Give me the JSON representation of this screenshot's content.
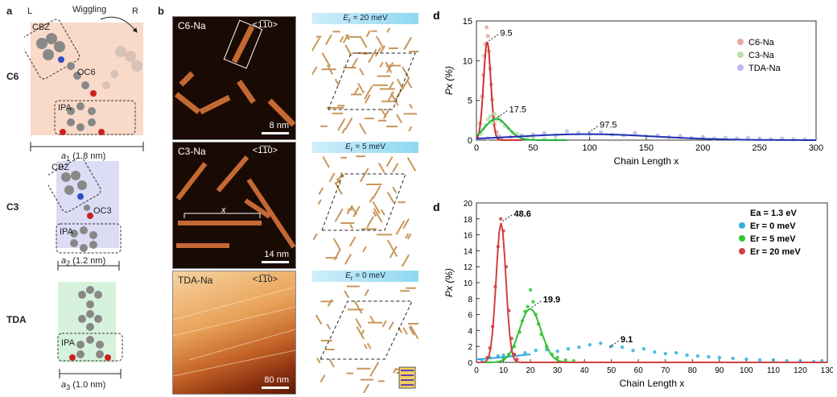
{
  "panel_a": {
    "letter": "a",
    "side_left": "L",
    "side_right": "R",
    "wiggling": "Wiggling",
    "rows": [
      {
        "name": "C6",
        "cbz": "CBZ",
        "oc": "OC6",
        "ipa": "IPA",
        "a_sym": "a",
        "a_sub": "1",
        "a_val": " (1.8 nm)",
        "bg": "#f9d9c8"
      },
      {
        "name": "C3",
        "cbz": "CBZ",
        "oc": "OC3",
        "ipa": "IPA",
        "a_sym": "a",
        "a_sub": "2",
        "a_val": " (1.2 nm)",
        "bg": "#dcdcf5"
      },
      {
        "name": "TDA",
        "ipa": "IPA",
        "a_sym": "a",
        "a_sub": "3",
        "a_val": " (1.0 nm)",
        "bg": "#d6f2dc"
      }
    ]
  },
  "panel_b": {
    "letter": "b",
    "rows": [
      {
        "label": "C6-Na",
        "dir": "<1̅1̅0>",
        "scale": "8 nm",
        "energy_sym": "E",
        "energy_sub": "r",
        "energy_val": " = 20 meV"
      },
      {
        "label": "C3-Na",
        "dir": "<1̅1̅0>",
        "scale": "14 nm",
        "x_label": "x",
        "energy_sym": "E",
        "energy_sub": "r",
        "energy_val": " = 5 meV"
      },
      {
        "label": "TDA-Na",
        "dir": "<1̅1̅0>",
        "scale": "80 nm",
        "energy_sym": "E",
        "energy_sub": "r",
        "energy_val": " = 0 meV"
      }
    ]
  },
  "chart_data": [
    {
      "type": "scatter",
      "panel_letter": "d",
      "xlabel": "Chain Length x",
      "ylabel": "Px (%)",
      "xlim": [
        0,
        300
      ],
      "ylim": [
        0,
        15
      ],
      "xticks": [
        0,
        50,
        100,
        150,
        200,
        250,
        300
      ],
      "yticks": [
        0,
        5,
        10,
        15
      ],
      "legend_position": "top-right",
      "series": [
        {
          "name": "C6-Na",
          "color": "#e8a8a0",
          "fit_color": "#d03030",
          "peak": 9.5,
          "sigma": 3.2,
          "amp": 12.3,
          "points": [
            [
              3,
              2.1
            ],
            [
              5,
              5.5
            ],
            [
              6,
              8.2
            ],
            [
              7,
              10.6
            ],
            [
              8,
              12.1
            ],
            [
              9,
              14.2
            ],
            [
              10,
              13.1
            ],
            [
              11,
              11.2
            ],
            [
              12,
              9.0
            ],
            [
              13,
              7.0
            ],
            [
              14,
              5.1
            ],
            [
              15,
              3.0
            ],
            [
              16,
              2.0
            ],
            [
              18,
              1.0
            ],
            [
              20,
              0.4
            ],
            [
              22,
              0.2
            ]
          ]
        },
        {
          "name": "C3-Na",
          "color": "#b8e0a8",
          "fit_color": "#20b040",
          "peak": 17.5,
          "sigma": 10,
          "amp": 2.7,
          "points": [
            [
              4,
              0.8
            ],
            [
              6,
              1.4
            ],
            [
              8,
              1.9
            ],
            [
              10,
              2.6
            ],
            [
              12,
              3.0
            ],
            [
              14,
              2.2
            ],
            [
              16,
              3.3
            ],
            [
              18,
              2.6
            ],
            [
              20,
              2.9
            ],
            [
              22,
              2.3
            ],
            [
              25,
              1.8
            ],
            [
              28,
              1.5
            ],
            [
              32,
              1.0
            ],
            [
              36,
              0.8
            ],
            [
              40,
              0.5
            ],
            [
              45,
              0.4
            ],
            [
              50,
              0.3
            ],
            [
              60,
              0.2
            ],
            [
              70,
              0.1
            ]
          ]
        },
        {
          "name": "TDA-Na",
          "color": "#b8b8f0",
          "fit_color": "#2030b0",
          "peak": 97.5,
          "sigma": 60,
          "amp": 0.75,
          "points": [
            [
              10,
              0.2
            ],
            [
              20,
              0.5
            ],
            [
              30,
              0.4
            ],
            [
              40,
              0.6
            ],
            [
              50,
              0.7
            ],
            [
              60,
              0.9
            ],
            [
              70,
              0.6
            ],
            [
              80,
              1.1
            ],
            [
              90,
              0.9
            ],
            [
              100,
              0.8
            ],
            [
              110,
              1.0
            ],
            [
              120,
              0.7
            ],
            [
              130,
              0.6
            ],
            [
              140,
              0.9
            ],
            [
              150,
              0.5
            ],
            [
              160,
              0.6
            ],
            [
              170,
              0.4
            ],
            [
              180,
              0.5
            ],
            [
              190,
              0.3
            ],
            [
              200,
              0.4
            ],
            [
              210,
              0.2
            ],
            [
              220,
              0.3
            ],
            [
              230,
              0.2
            ],
            [
              240,
              0.3
            ],
            [
              250,
              0.2
            ],
            [
              260,
              0.1
            ],
            [
              270,
              0.2
            ],
            [
              280,
              0.1
            ],
            [
              290,
              0.1
            ]
          ]
        }
      ],
      "annotations": [
        "9.5",
        "17.5",
        "97.5"
      ]
    },
    {
      "type": "scatter",
      "panel_letter": "d",
      "xlabel": "Chain Length x",
      "ylabel": "Px (%)",
      "xlim": [
        0,
        130
      ],
      "ylim": [
        0,
        20
      ],
      "xticks": [
        0,
        10,
        20,
        30,
        40,
        50,
        60,
        70,
        80,
        90,
        100,
        110,
        120,
        130
      ],
      "yticks": [
        0,
        2,
        4,
        6,
        8,
        10,
        12,
        14,
        16,
        18,
        20
      ],
      "legend_position": "top-right",
      "legend_title": "Ea = 1.3 eV",
      "series": [
        {
          "name": "Er = 0 meV",
          "color": "#30b0e0",
          "fit_color": "#30a8e0",
          "peak": 48.6,
          "sigma": 28,
          "amp": 1.7,
          "points": [
            [
              2,
              0.3
            ],
            [
              5,
              0.6
            ],
            [
              8,
              0.8
            ],
            [
              10,
              0.9
            ],
            [
              14,
              1.0
            ],
            [
              18,
              1.2
            ],
            [
              22,
              1.5
            ],
            [
              26,
              1.6
            ],
            [
              30,
              1.4
            ],
            [
              34,
              1.7
            ],
            [
              38,
              1.9
            ],
            [
              42,
              2.2
            ],
            [
              46,
              2.4
            ],
            [
              50,
              2.0
            ],
            [
              54,
              1.9
            ],
            [
              58,
              1.5
            ],
            [
              62,
              1.7
            ],
            [
              66,
              1.3
            ],
            [
              70,
              1.1
            ],
            [
              74,
              1.2
            ],
            [
              78,
              0.9
            ],
            [
              82,
              0.8
            ],
            [
              86,
              0.7
            ],
            [
              90,
              0.6
            ],
            [
              95,
              0.5
            ],
            [
              100,
              0.4
            ],
            [
              105,
              0.3
            ],
            [
              110,
              0.3
            ],
            [
              115,
              0.2
            ],
            [
              120,
              0.2
            ],
            [
              125,
              0.1
            ],
            [
              128,
              0.2
            ]
          ]
        },
        {
          "name": "Er = 5 meV",
          "color": "#30c830",
          "fit_color": "#30c030",
          "peak": 19.9,
          "sigma": 4,
          "amp": 6.7,
          "points": [
            [
              10,
              0.4
            ],
            [
              12,
              1.0
            ],
            [
              14,
              2.0
            ],
            [
              16,
              3.8
            ],
            [
              17,
              5.2
            ],
            [
              18,
              6.4
            ],
            [
              19,
              7.0
            ],
            [
              20,
              9.1
            ],
            [
              21,
              7.6
            ],
            [
              22,
              6.0
            ],
            [
              23,
              4.8
            ],
            [
              24,
              3.5
            ],
            [
              26,
              2.0
            ],
            [
              28,
              1.0
            ],
            [
              30,
              0.6
            ],
            [
              33,
              0.3
            ],
            [
              36,
              0.2
            ]
          ]
        },
        {
          "name": "Er = 20 meV",
          "color": "#d04040",
          "fit_color": "#d04040",
          "peak": 9.1,
          "sigma": 1.8,
          "amp": 17.5,
          "points": [
            [
              4,
              0.6
            ],
            [
              5,
              1.8
            ],
            [
              6,
              4.5
            ],
            [
              7,
              9.5
            ],
            [
              8,
              14.5
            ],
            [
              9,
              18.0
            ],
            [
              10,
              16.5
            ],
            [
              11,
              12.0
            ],
            [
              12,
              6.5
            ],
            [
              13,
              3.0
            ],
            [
              14,
              1.0
            ],
            [
              15,
              0.4
            ]
          ]
        }
      ],
      "annotations": [
        "9.1",
        "19.9",
        "48.6"
      ]
    }
  ]
}
